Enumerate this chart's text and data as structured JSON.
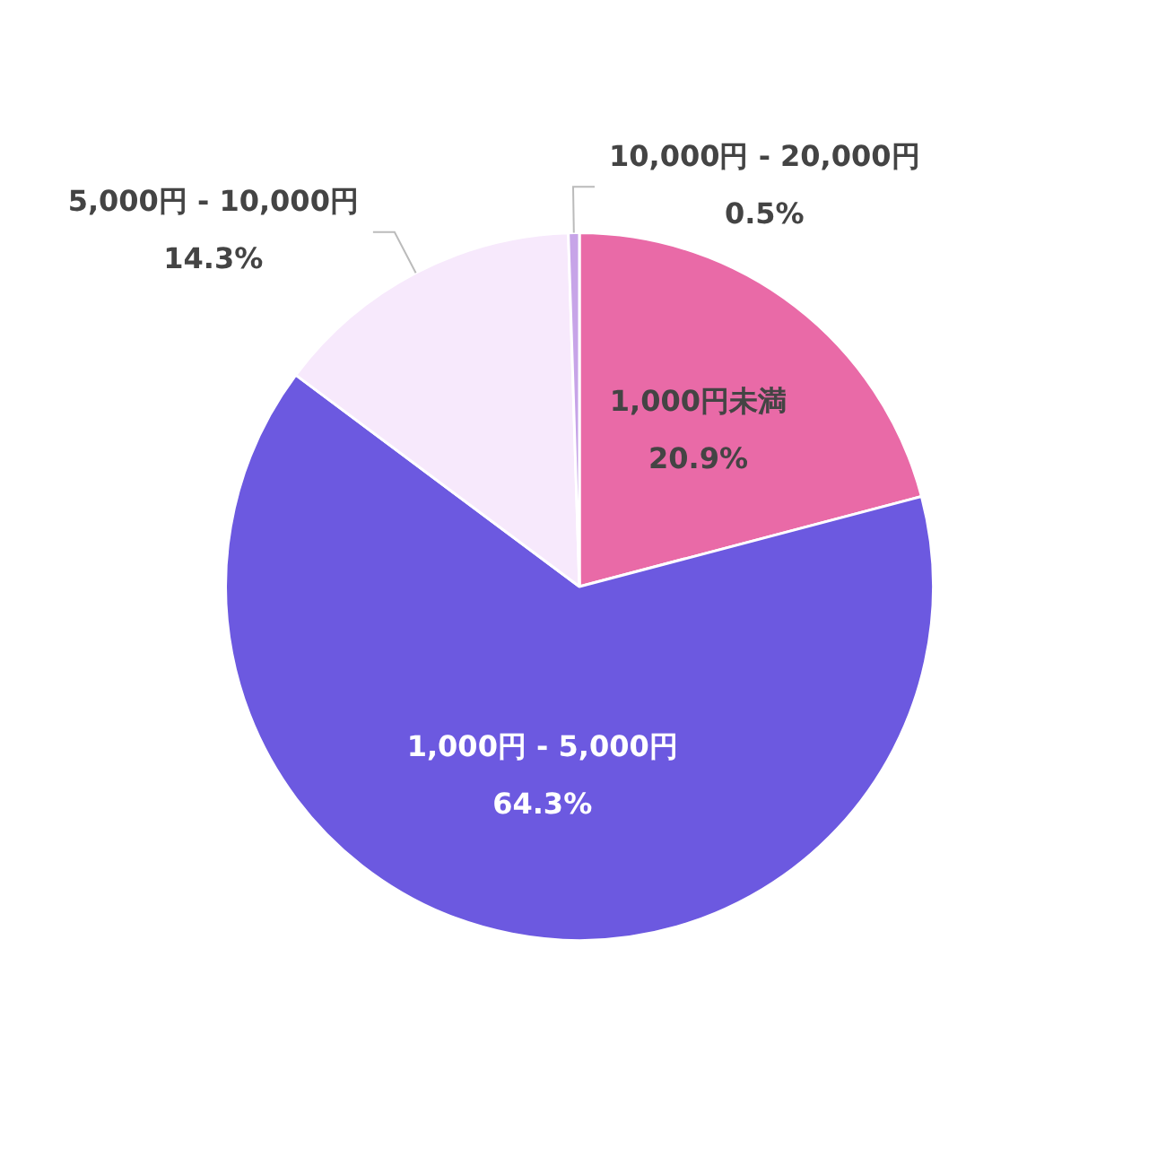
{
  "chart_data": {
    "type": "pie",
    "categories": [
      "1,000円未満",
      "1,000円 - 5,000円",
      "5,000円 - 10,000円",
      "10,000円 - 20,000円"
    ],
    "values": [
      20.9,
      64.3,
      14.3,
      0.5
    ],
    "value_labels": [
      "20.9%",
      "64.3%",
      "14.3%",
      "0.5%"
    ],
    "colors": [
      "#e96aa7",
      "#6c59e0",
      "#f7e9fc",
      "#c7a4e8"
    ],
    "legend": false
  }
}
